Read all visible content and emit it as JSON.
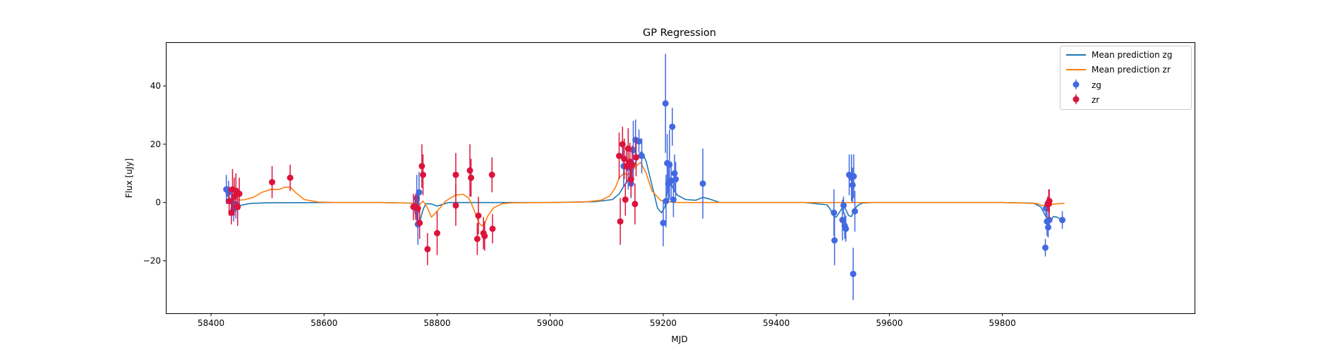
{
  "chart_data": {
    "type": "scatter",
    "title": "GP Regression",
    "xlabel": "MJD",
    "ylabel": "Flux [uJy]",
    "xlim": [
      58320,
      60140
    ],
    "ylim": [
      -38,
      55
    ],
    "xticks": [
      58400,
      58600,
      58800,
      59000,
      59200,
      59400,
      59600,
      59800
    ],
    "yticks": [
      -20,
      0,
      20,
      40
    ],
    "grid": false,
    "legend_position": "top-right",
    "lines": [
      {
        "name": "Mean prediction zg",
        "color": "#1f77b4",
        "x": [
          58427,
          58432,
          58436,
          58440,
          58445,
          58452,
          58470,
          58500,
          58600,
          58700,
          58755,
          58762,
          58766,
          58770,
          58775,
          58780,
          58790,
          58800,
          58820,
          58900,
          59000,
          59080,
          59110,
          59122,
          59130,
          59140,
          59148,
          59155,
          59162,
          59170,
          59180,
          59190,
          59197,
          59203,
          59206,
          59209,
          59213,
          59218,
          59225,
          59240,
          59258,
          59270,
          59282,
          59300,
          59350,
          59450,
          59490,
          59496,
          59501,
          59506,
          59513,
          59518,
          59522,
          59528,
          59533,
          59538,
          59544,
          59552,
          59570,
          59700,
          59800,
          59855,
          59868,
          59876,
          59882,
          59886,
          59890,
          59897,
          59904,
          59910
        ],
        "y": [
          2.5,
          1.8,
          0.2,
          -3.2,
          -2.6,
          -1.0,
          -0.3,
          -0.1,
          0.0,
          0.0,
          -0.2,
          -3.5,
          -6.8,
          -6.0,
          -2.5,
          -0.4,
          -0.5,
          -1.2,
          0.0,
          0.0,
          0.0,
          0.3,
          1.0,
          3.0,
          5.5,
          8.5,
          12.0,
          16.0,
          17.5,
          14.0,
          6.0,
          -2.0,
          -3.5,
          -1.5,
          2.5,
          6.0,
          7.0,
          4.5,
          2.5,
          1.0,
          0.8,
          1.8,
          1.2,
          0.0,
          0.0,
          0.0,
          -0.8,
          -2.5,
          -4.5,
          -5.0,
          -3.0,
          -1.2,
          -2.0,
          -4.5,
          -4.8,
          -2.5,
          -1.0,
          -0.2,
          0.0,
          0.0,
          0.0,
          -0.2,
          -1.5,
          -4.5,
          -6.5,
          -6.2,
          -4.8,
          -5.0,
          -6.0,
          -6.3
        ]
      },
      {
        "name": "Mean prediction zr",
        "color": "#ff7f0e",
        "x": [
          58427,
          58433,
          58438,
          58443,
          58450,
          58460,
          58475,
          58490,
          58505,
          58520,
          58530,
          58540,
          58552,
          58565,
          58590,
          58620,
          58700,
          58755,
          58763,
          58768,
          58775,
          58782,
          58790,
          58800,
          58815,
          58832,
          58846,
          58856,
          58862,
          58868,
          58874,
          58879,
          58884,
          58890,
          58900,
          58915,
          58935,
          59000,
          59060,
          59090,
          59105,
          59115,
          59122,
          59130,
          59138,
          59146,
          59152,
          59160,
          59170,
          59180,
          59195,
          59220,
          59300,
          59600,
          59800,
          59860,
          59870,
          59876,
          59882,
          59890,
          59900,
          59910
        ],
        "y": [
          0.5,
          0.3,
          0.5,
          1.5,
          0.8,
          1.0,
          1.8,
          3.5,
          4.5,
          4.5,
          5.2,
          5.3,
          3.0,
          1.0,
          0.2,
          0.0,
          0.0,
          -0.2,
          -2.0,
          -1.0,
          0.5,
          -1.5,
          -5.0,
          -3.0,
          0.5,
          2.5,
          2.8,
          1.5,
          -1.0,
          -4.0,
          -7.0,
          -8.0,
          -7.2,
          -4.5,
          -1.8,
          -0.4,
          -0.1,
          0.0,
          0.2,
          0.8,
          2.2,
          5.0,
          8.5,
          10.0,
          9.5,
          11.0,
          12.5,
          13.8,
          10.0,
          4.0,
          0.8,
          0.0,
          0.0,
          0.0,
          0.0,
          -0.3,
          -1.0,
          -1.0,
          -0.6,
          -0.6,
          -0.4,
          -0.3
        ]
      }
    ],
    "series": [
      {
        "name": "zg",
        "color": "#4169e1",
        "points": [
          [
            58427,
            4.5,
            5.0
          ],
          [
            58431,
            3.5,
            4.0
          ],
          [
            58436,
            0.5,
            4.5
          ],
          [
            58440,
            -2.0,
            4.5
          ],
          [
            58444,
            -0.5,
            5.0
          ],
          [
            58761,
            -1.0,
            3.0
          ],
          [
            58764,
            1.5,
            8.0
          ],
          [
            58766,
            -7.5,
            7.0
          ],
          [
            58768,
            3.5,
            7.0
          ],
          [
            59130,
            12.5,
            7.0
          ],
          [
            59138,
            12.0,
            7.5
          ],
          [
            59143,
            6.5,
            5.0
          ],
          [
            59147,
            18.0,
            10.0
          ],
          [
            59151,
            21.5,
            7.0
          ],
          [
            59157,
            21.0,
            4.0
          ],
          [
            59162,
            16.0,
            6.0
          ],
          [
            59200,
            -7.0,
            8.0
          ],
          [
            59204,
            34.0,
            17.0
          ],
          [
            59205,
            0.5,
            9.0
          ],
          [
            59207,
            13.5,
            10.0
          ],
          [
            59209,
            6.5,
            6.0
          ],
          [
            59211,
            13.0,
            12.0
          ],
          [
            59214,
            7.5,
            6.5
          ],
          [
            59216,
            26.0,
            6.5
          ],
          [
            59218,
            1.0,
            6.0
          ],
          [
            59220,
            10.0,
            6.5
          ],
          [
            59222,
            8.0,
            6.0
          ],
          [
            59270,
            6.5,
            12.0
          ],
          [
            59502,
            -3.5,
            8.0
          ],
          [
            59503,
            -13.0,
            8.5
          ],
          [
            59517,
            -6.0,
            7.0
          ],
          [
            59519,
            -1.0,
            3.0
          ],
          [
            59521,
            -8.0,
            4.5
          ],
          [
            59523,
            -9.0,
            4.5
          ],
          [
            59529,
            9.5,
            7.0
          ],
          [
            59533,
            8.5,
            8.0
          ],
          [
            59535,
            6.0,
            6.0
          ],
          [
            59536,
            -24.5,
            9.0
          ],
          [
            59537,
            9.0,
            7.5
          ],
          [
            59539,
            -3.0,
            7.0
          ],
          [
            59876,
            -15.5,
            3.0
          ],
          [
            59877,
            -2.0,
            2.5
          ],
          [
            59879,
            -6.5,
            5.0
          ],
          [
            59881,
            -8.5,
            3.5
          ],
          [
            59883,
            -6.0,
            3.5
          ],
          [
            59906,
            -6.0,
            3.0
          ]
        ]
      },
      {
        "name": "zr",
        "color": "#dc143c",
        "points": [
          [
            58432,
            0.5,
            5.0
          ],
          [
            58436,
            -3.5,
            4.0
          ],
          [
            58438,
            4.5,
            7.0
          ],
          [
            58441,
            2.0,
            6.5
          ],
          [
            58444,
            4.0,
            6.0
          ],
          [
            58447,
            -1.5,
            6.5
          ],
          [
            58450,
            3.0,
            5.5
          ],
          [
            58508,
            7.0,
            5.5
          ],
          [
            58540,
            8.5,
            4.5
          ],
          [
            58758,
            -1.5,
            4.5
          ],
          [
            58762,
            -1.5,
            4.5
          ],
          [
            58766,
            -2.0,
            4.5
          ],
          [
            58769,
            -7.0,
            5.5
          ],
          [
            58773,
            12.5,
            7.5
          ],
          [
            58775,
            9.5,
            7.0
          ],
          [
            58783,
            -16.0,
            5.5
          ],
          [
            58800,
            -10.5,
            7.5
          ],
          [
            58833,
            9.5,
            7.5
          ],
          [
            58833,
            -1.0,
            7.0
          ],
          [
            58858,
            11.0,
            9.0
          ],
          [
            58860,
            8.5,
            6.5
          ],
          [
            58871,
            -12.5,
            5.5
          ],
          [
            58873,
            -4.5,
            6.5
          ],
          [
            58882,
            -10.5,
            5.5
          ],
          [
            58884,
            -11.5,
            5.0
          ],
          [
            58897,
            9.5,
            6.0
          ],
          [
            58898,
            -9.0,
            5.0
          ],
          [
            59122,
            16.0,
            8.0
          ],
          [
            59124,
            -6.5,
            8.0
          ],
          [
            59128,
            20.0,
            6.0
          ],
          [
            59131,
            15.0,
            7.0
          ],
          [
            59133,
            1.0,
            5.5
          ],
          [
            59135,
            12.5,
            6.0
          ],
          [
            59138,
            18.5,
            7.0
          ],
          [
            59141,
            14.0,
            6.5
          ],
          [
            59143,
            8.0,
            6.0
          ],
          [
            59145,
            13.0,
            6.5
          ],
          [
            59150,
            -0.5,
            7.0
          ],
          [
            59152,
            15.5,
            6.5
          ],
          [
            59880,
            -0.5,
            2.5
          ],
          [
            59882,
            -0.5,
            5.0
          ],
          [
            59883,
            0.5,
            4.0
          ]
        ]
      }
    ]
  }
}
